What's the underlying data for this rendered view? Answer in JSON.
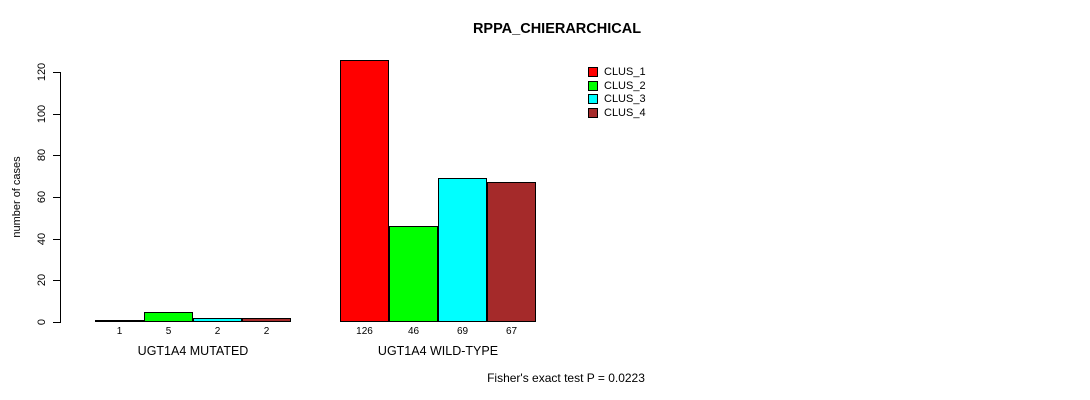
{
  "chart_data": {
    "type": "bar",
    "title": "RPPA_CHIERARCHICAL",
    "ylabel": "number of cases",
    "xlabel": "",
    "ylim": [
      0,
      120
    ],
    "yticks": [
      0,
      20,
      40,
      60,
      80,
      100,
      120
    ],
    "grid": false,
    "legend_position": "top-right",
    "categories": [
      "UGT1A4 MUTATED",
      "UGT1A4 WILD-TYPE"
    ],
    "series": [
      {
        "name": "CLUS_1",
        "color": "#ff0000",
        "values": [
          1,
          126
        ]
      },
      {
        "name": "CLUS_2",
        "color": "#00ff00",
        "values": [
          5,
          46
        ]
      },
      {
        "name": "CLUS_3",
        "color": "#00ffff",
        "values": [
          2,
          69
        ]
      },
      {
        "name": "CLUS_4",
        "color": "#a52a2a",
        "values": [
          2,
          67
        ]
      }
    ],
    "bar_value_labels": [
      [
        1,
        5,
        2,
        2
      ],
      [
        126,
        46,
        69,
        67
      ]
    ],
    "annotation": "Fisher's exact test P = 0.0223"
  },
  "colors": {
    "foreground": "#000000",
    "background": "#ffffff"
  }
}
